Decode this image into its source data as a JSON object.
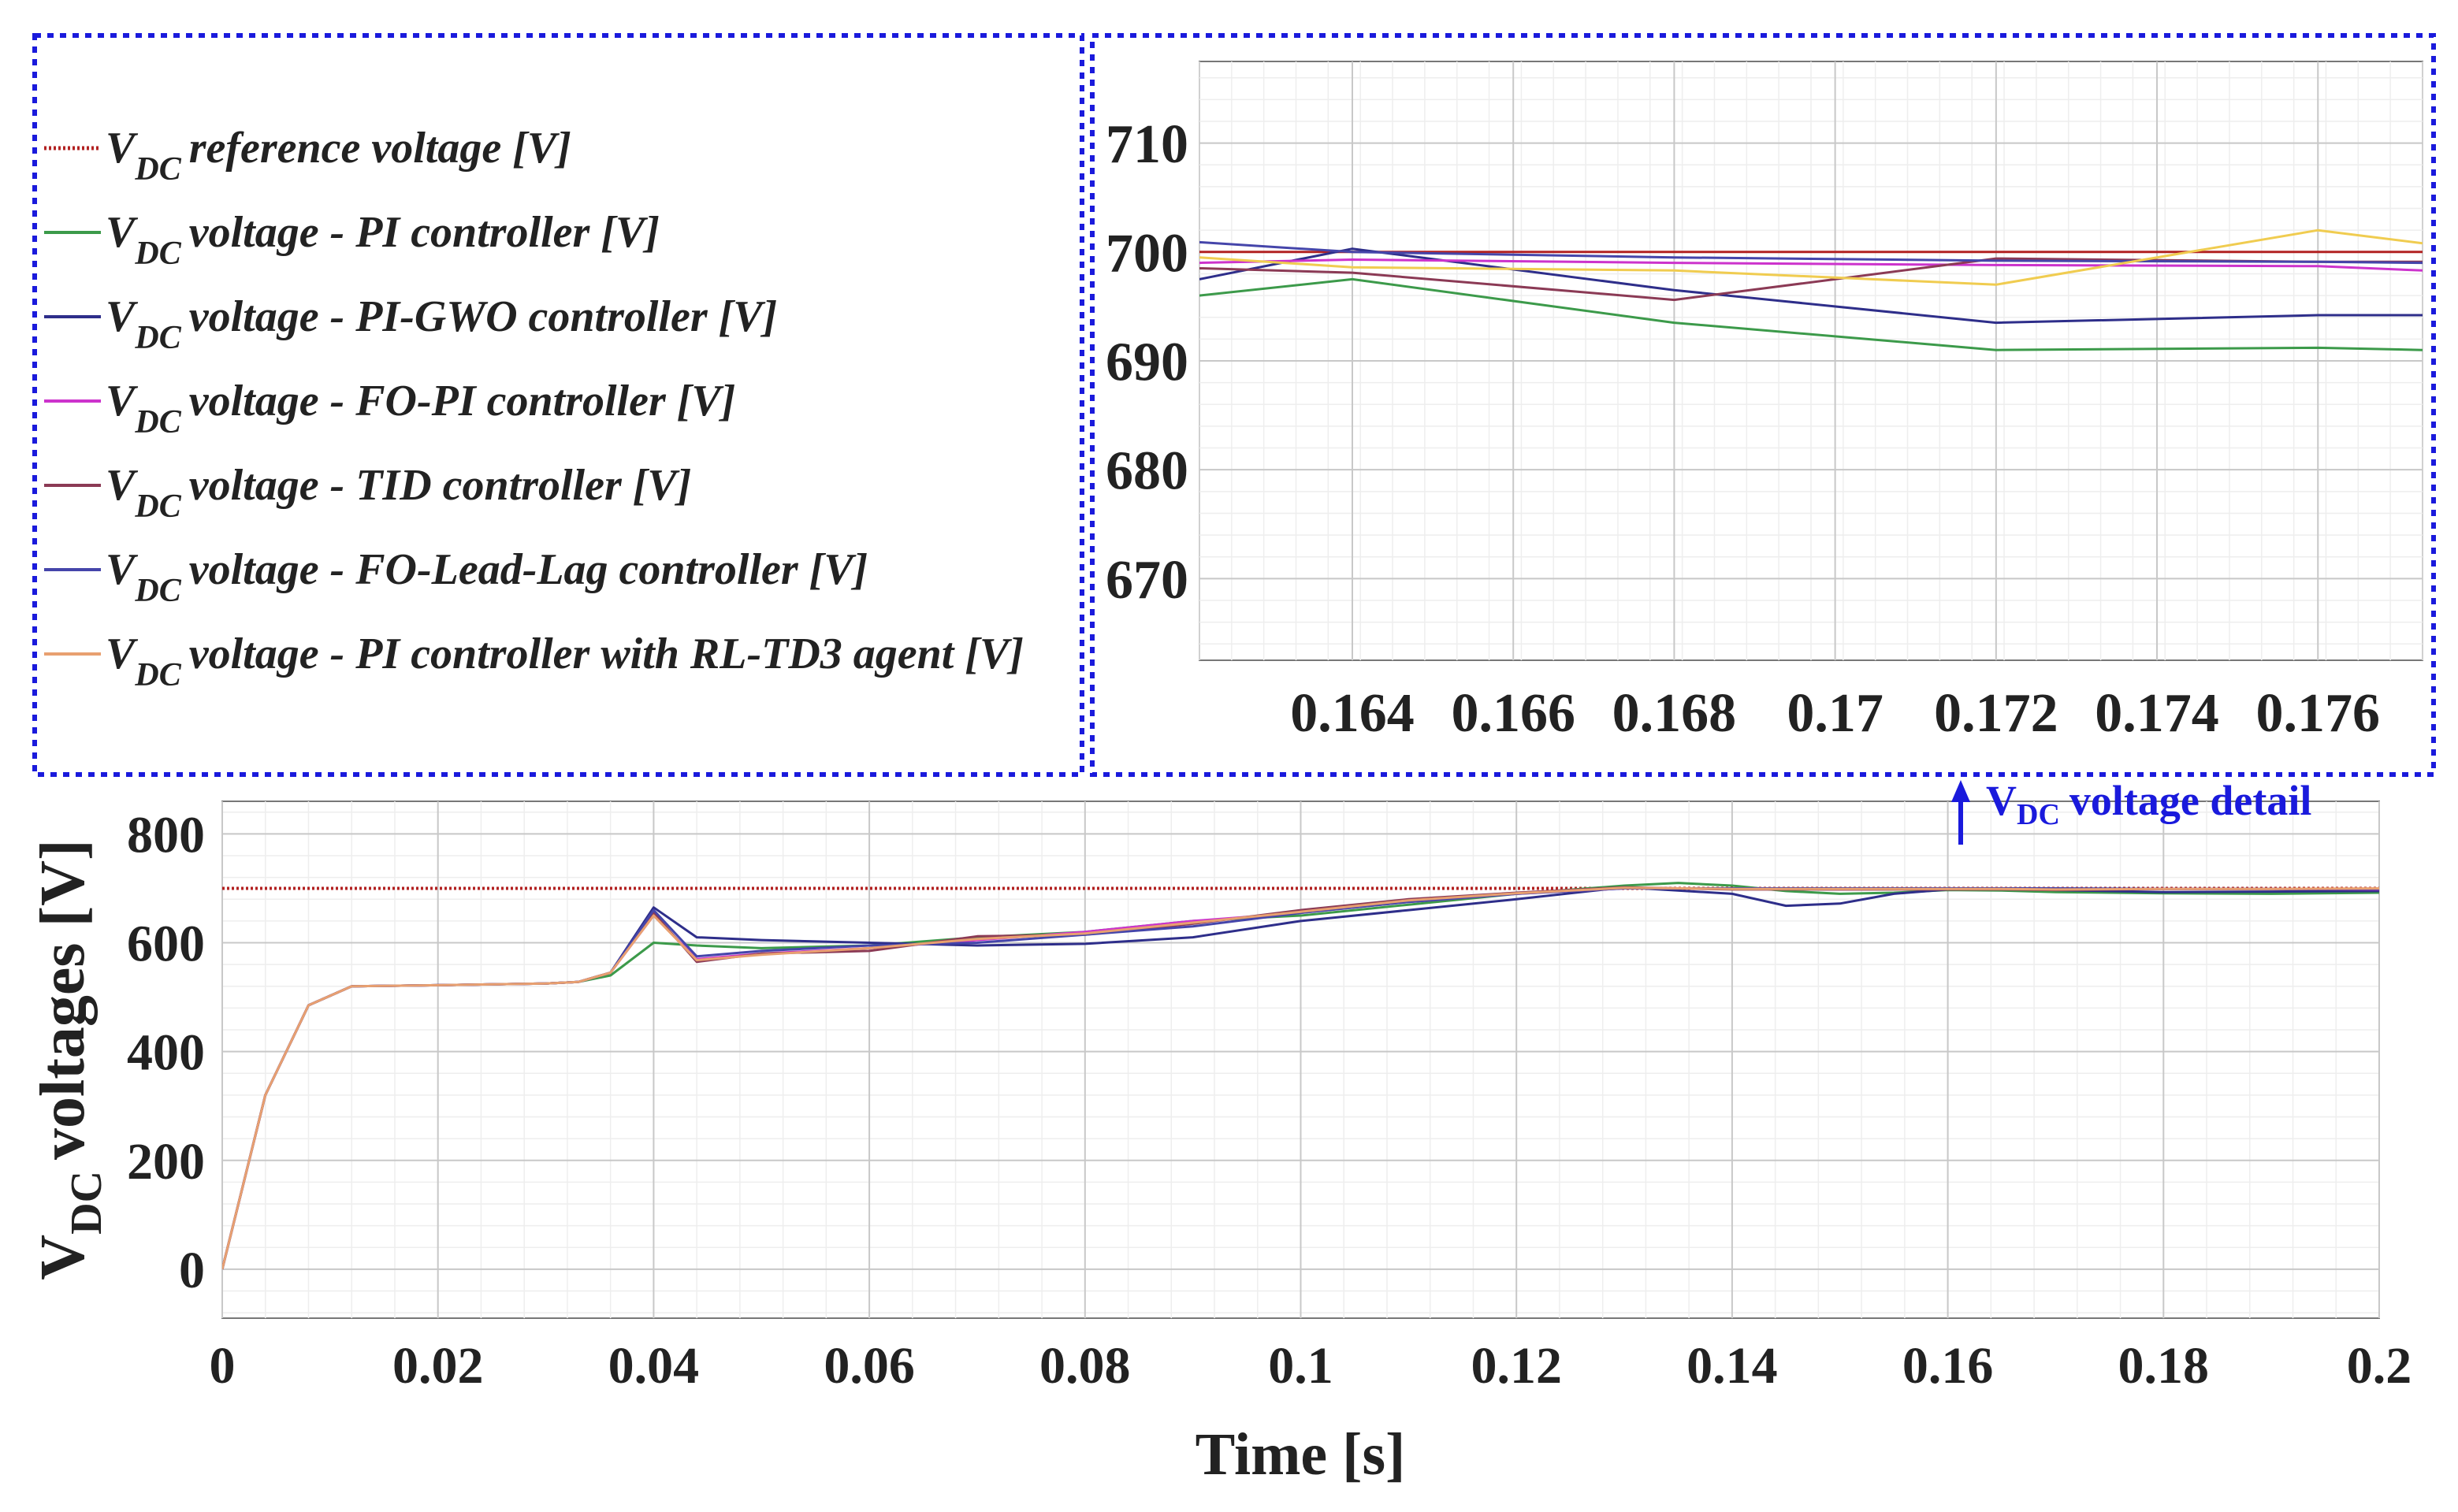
{
  "legend": {
    "entries": [
      {
        "prefix": "V",
        "sub": "DC",
        "text": "reference voltage [V]",
        "color": "#b22222",
        "dotted": true
      },
      {
        "prefix": "V",
        "sub": "DC",
        "text": "voltage - PI controller [V]",
        "color": "#3c9a4a",
        "dotted": false
      },
      {
        "prefix": "V",
        "sub": "DC",
        "text": "voltage - PI-GWO controller [V]",
        "color": "#2e2e8a",
        "dotted": false
      },
      {
        "prefix": "V",
        "sub": "DC",
        "text": "voltage - FO-PI controller [V]",
        "color": "#cc33cc",
        "dotted": false
      },
      {
        "prefix": "V",
        "sub": "DC",
        "text": "voltage - TID controller [V]",
        "color": "#8b3a55",
        "dotted": false
      },
      {
        "prefix": "V",
        "sub": "DC",
        "text": "voltage - FO-Lead-Lag controller [V]",
        "color": "#4545aa",
        "dotted": false
      },
      {
        "prefix": "V",
        "sub": "DC",
        "text": "voltage - PI controller with RL-TD3 agent [V]",
        "color": "#e8a070",
        "dotted": false
      }
    ]
  },
  "annotation": {
    "prefix": "V",
    "sub": "DC",
    "text": "voltage detail"
  },
  "colors": {
    "frame": "#1a1adc",
    "grid": "#d9d9d9",
    "axis": "#555555"
  },
  "chart_data": [
    {
      "id": "main",
      "type": "line",
      "title": "",
      "xlabel": "Time [s]",
      "ylabel": {
        "prefix": "V",
        "sub": "DC",
        "text": "voltages [V]"
      },
      "xlim": [
        0,
        0.2
      ],
      "ylim": [
        -90,
        860
      ],
      "xticks": [
        0,
        0.02,
        0.04,
        0.06,
        0.08,
        0.1,
        0.12,
        0.14,
        0.16,
        0.18,
        0.2
      ],
      "xtick_labels": [
        "0",
        "0.02",
        "0.04",
        "0.06",
        "0.08",
        "0.1",
        "0.12",
        "0.14",
        "0.16",
        "0.18",
        "0.2"
      ],
      "yticks": [
        0,
        200,
        400,
        600,
        800
      ],
      "ytick_labels": [
        "0",
        "200",
        "400",
        "600",
        "800"
      ],
      "grid": true,
      "series": [
        {
          "name": "VDC reference voltage [V]",
          "color": "#b22222",
          "dashed": true,
          "x": [
            0,
            0.2
          ],
          "y": [
            700,
            700
          ]
        },
        {
          "name": "VDC voltage - PI controller [V]",
          "color": "#3c9a4a",
          "x": [
            0,
            0.004,
            0.008,
            0.012,
            0.02,
            0.03,
            0.033,
            0.036,
            0.04,
            0.044,
            0.05,
            0.06,
            0.07,
            0.08,
            0.09,
            0.1,
            0.11,
            0.12,
            0.13,
            0.135,
            0.14,
            0.145,
            0.15,
            0.155,
            0.16,
            0.165,
            0.17,
            0.18,
            0.19,
            0.2
          ],
          "y": [
            0,
            320,
            485,
            520,
            522,
            525,
            528,
            540,
            600,
            595,
            590,
            595,
            610,
            620,
            640,
            650,
            670,
            690,
            705,
            710,
            705,
            695,
            690,
            692,
            697,
            696,
            693,
            691,
            690,
            692
          ]
        },
        {
          "name": "VDC voltage - PI-GWO controller [V]",
          "color": "#2e2e8a",
          "x": [
            0,
            0.004,
            0.008,
            0.012,
            0.02,
            0.03,
            0.033,
            0.036,
            0.04,
            0.044,
            0.05,
            0.06,
            0.07,
            0.08,
            0.09,
            0.1,
            0.11,
            0.12,
            0.13,
            0.14,
            0.145,
            0.15,
            0.155,
            0.16,
            0.165,
            0.17,
            0.18,
            0.19,
            0.2
          ],
          "y": [
            0,
            320,
            485,
            520,
            522,
            525,
            528,
            545,
            665,
            610,
            605,
            600,
            595,
            598,
            610,
            640,
            660,
            680,
            702,
            690,
            668,
            672,
            690,
            698,
            700,
            697,
            693,
            694,
            695
          ]
        },
        {
          "name": "VDC voltage - FO-PI controller [V]",
          "color": "#cc33cc",
          "x": [
            0,
            0.004,
            0.008,
            0.012,
            0.02,
            0.03,
            0.033,
            0.036,
            0.04,
            0.044,
            0.05,
            0.06,
            0.07,
            0.08,
            0.09,
            0.1,
            0.11,
            0.12,
            0.13,
            0.14,
            0.15,
            0.16,
            0.165,
            0.17,
            0.18,
            0.19,
            0.2
          ],
          "y": [
            0,
            320,
            485,
            520,
            522,
            525,
            528,
            545,
            650,
            570,
            580,
            590,
            605,
            620,
            640,
            655,
            675,
            690,
            700,
            700,
            698,
            699,
            699,
            699,
            699,
            699,
            698
          ]
        },
        {
          "name": "VDC voltage - TID controller [V]",
          "color": "#8b3a55",
          "x": [
            0,
            0.004,
            0.008,
            0.012,
            0.02,
            0.03,
            0.033,
            0.036,
            0.04,
            0.044,
            0.05,
            0.06,
            0.07,
            0.08,
            0.09,
            0.1,
            0.11,
            0.12,
            0.13,
            0.14,
            0.15,
            0.16,
            0.165,
            0.17,
            0.18,
            0.19,
            0.2
          ],
          "y": [
            0,
            320,
            485,
            520,
            522,
            525,
            528,
            545,
            655,
            565,
            580,
            585,
            612,
            615,
            635,
            660,
            680,
            692,
            702,
            698,
            698,
            698,
            698,
            697,
            699,
            699,
            699
          ]
        },
        {
          "name": "VDC voltage - FO-Lead-Lag controller [V]",
          "color": "#4545aa",
          "x": [
            0,
            0.004,
            0.008,
            0.012,
            0.02,
            0.03,
            0.033,
            0.036,
            0.04,
            0.044,
            0.05,
            0.06,
            0.07,
            0.08,
            0.09,
            0.1,
            0.11,
            0.12,
            0.13,
            0.14,
            0.15,
            0.16,
            0.165,
            0.17,
            0.18,
            0.19,
            0.2
          ],
          "y": [
            0,
            320,
            485,
            520,
            522,
            525,
            528,
            545,
            660,
            575,
            585,
            595,
            600,
            615,
            630,
            655,
            675,
            690,
            700,
            700,
            700,
            700,
            700,
            700,
            699,
            699,
            699
          ]
        },
        {
          "name": "VDC voltage - PI controller with RL-TD3 agent [V]",
          "color": "#e8a070",
          "x": [
            0,
            0.004,
            0.008,
            0.012,
            0.02,
            0.03,
            0.033,
            0.036,
            0.04,
            0.044,
            0.05,
            0.06,
            0.07,
            0.08,
            0.09,
            0.1,
            0.11,
            0.12,
            0.13,
            0.14,
            0.15,
            0.16,
            0.165,
            0.17,
            0.18,
            0.19,
            0.2
          ],
          "y": [
            0,
            320,
            485,
            520,
            522,
            525,
            528,
            545,
            650,
            568,
            578,
            590,
            607,
            617,
            637,
            657,
            678,
            691,
            701,
            699,
            699,
            699,
            699,
            698,
            699,
            699,
            700
          ]
        }
      ]
    },
    {
      "id": "inset",
      "type": "line",
      "title": "",
      "xlim": [
        0.1621,
        0.1773
      ],
      "ylim": [
        662.5,
        717.5
      ],
      "xticks": [
        0.164,
        0.166,
        0.168,
        0.17,
        0.172,
        0.174,
        0.176
      ],
      "xtick_labels": [
        "0.164",
        "0.166",
        "0.168",
        "0.17",
        "0.172",
        "0.174",
        "0.176"
      ],
      "yticks": [
        670,
        680,
        690,
        700,
        710
      ],
      "ytick_labels": [
        "670",
        "680",
        "690",
        "700",
        "710"
      ],
      "grid": true,
      "series": [
        {
          "name": "VDC reference voltage [V]",
          "color": "#b22222",
          "x": [
            0.1621,
            0.1773
          ],
          "y": [
            700,
            700
          ]
        },
        {
          "name": "VDC voltage - PI controller [V]",
          "color": "#3c9a4a",
          "x": [
            0.1621,
            0.164,
            0.168,
            0.172,
            0.176,
            0.1773
          ],
          "y": [
            696,
            697.5,
            693.5,
            691,
            691.2,
            691
          ]
        },
        {
          "name": "VDC voltage - PI-GWO controller [V]",
          "color": "#2e2e8a",
          "x": [
            0.1621,
            0.164,
            0.168,
            0.172,
            0.176,
            0.1773
          ],
          "y": [
            697.5,
            700.3,
            696.5,
            693.5,
            694.2,
            694.2
          ]
        },
        {
          "name": "VDC voltage - FO-PI controller [V]",
          "color": "#cc33cc",
          "x": [
            0.1621,
            0.164,
            0.168,
            0.172,
            0.176,
            0.1773
          ],
          "y": [
            699,
            699.3,
            699,
            698.8,
            698.7,
            698.3
          ]
        },
        {
          "name": "VDC voltage - TID controller [V]",
          "color": "#8b3a55",
          "x": [
            0.1621,
            0.164,
            0.168,
            0.172,
            0.176,
            0.1773
          ],
          "y": [
            698.5,
            698.1,
            695.6,
            699.4,
            699.1,
            699.1
          ]
        },
        {
          "name": "VDC voltage - FO-Lead-Lag controller [V]",
          "color": "#4545aa",
          "x": [
            0.1621,
            0.164,
            0.168,
            0.172,
            0.176,
            0.1773
          ],
          "y": [
            700.9,
            700,
            699.5,
            699.2,
            699.1,
            699
          ]
        },
        {
          "name": "VDC voltage - PI controller with RL-TD3 agent [V]",
          "color": "#f0cc50",
          "x": [
            0.1621,
            0.164,
            0.168,
            0.172,
            0.176,
            0.1773
          ],
          "y": [
            699.5,
            698.6,
            698.3,
            697,
            702,
            700.8
          ]
        }
      ]
    }
  ]
}
